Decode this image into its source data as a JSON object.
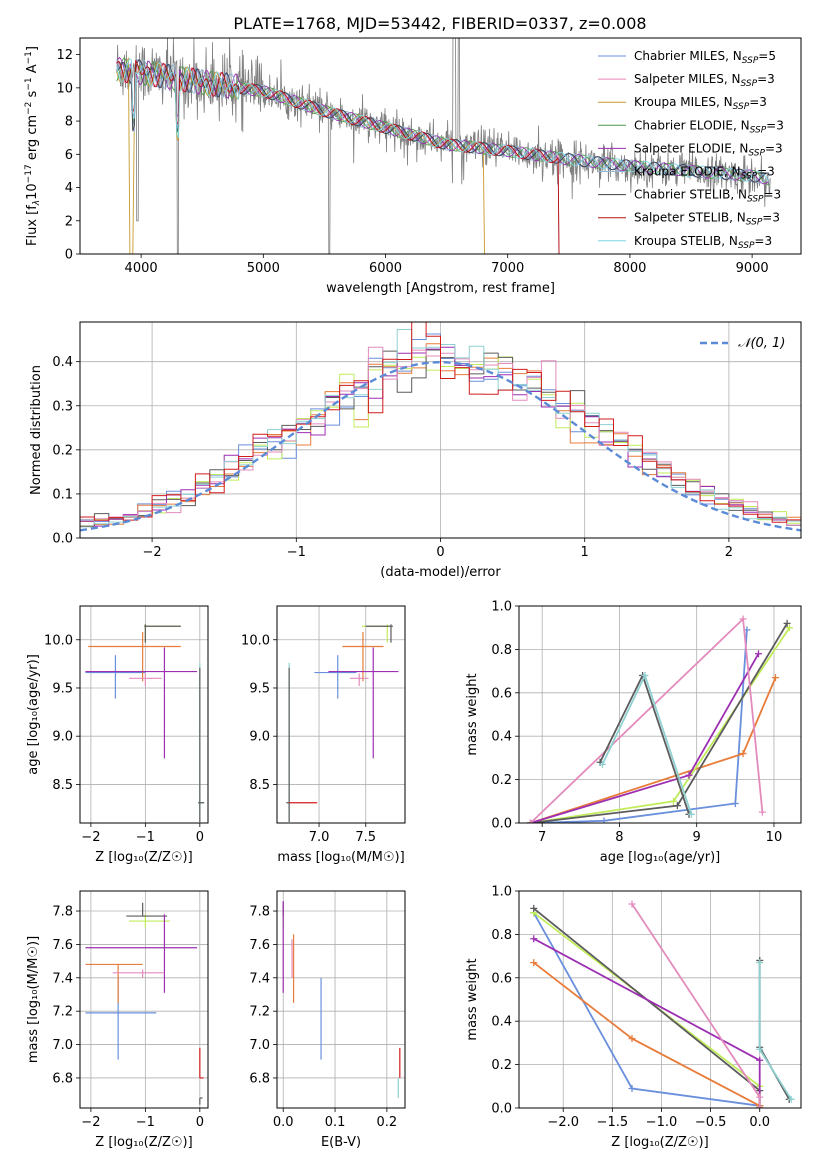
{
  "figure": {
    "title": "PLATE=1768, MJD=53442, FIBERID=0337, z=0.008"
  },
  "colors": [
    "#6a8fdc",
    "#e986b8",
    "#c8992c",
    "#4e9a4e",
    "#9b30b0",
    "#93b9d6",
    "#404040",
    "#b01010",
    "#7dd6e0"
  ],
  "model_colors": [
    "#6a8fdc",
    "#e87c3a",
    "#c0ec5a",
    "#5c5c5c",
    "#9c2fb2",
    "#e38bbd",
    "#8fd1d1",
    "#d21c1c"
  ],
  "chart_data": [
    {
      "id": "spectrum",
      "type": "line",
      "xlabel": "wavelength [Angstrom, rest frame]",
      "ylabel": "Flux [f_λ 10⁻¹⁷ erg cm⁻² s⁻¹ A⁻¹]",
      "ylabel_parts": [
        "Flux [f",
        "λ",
        "10",
        "−17",
        " erg cm",
        "−2",
        " s",
        "−1",
        " A",
        "−1",
        "]"
      ],
      "xlim": [
        3500,
        9400
      ],
      "ylim": [
        0,
        13
      ],
      "xticks": [
        4000,
        5000,
        6000,
        7000,
        8000,
        9000
      ],
      "yticks": [
        0,
        2,
        4,
        6,
        8,
        10,
        12
      ],
      "legend_position": "top-right",
      "legend": [
        {
          "name": "Chabrier MILES, N",
          "sub": "SSP",
          "tail": "=5"
        },
        {
          "name": "Salpeter MILES, N",
          "sub": "SSP",
          "tail": "=3"
        },
        {
          "name": "Kroupa MILES, N",
          "sub": "SSP",
          "tail": "=3"
        },
        {
          "name": "Chabrier ELODIE, N",
          "sub": "SSP",
          "tail": "=3"
        },
        {
          "name": "Salpeter ELODIE, N",
          "sub": "SSP",
          "tail": "=3"
        },
        {
          "name": "Kroupa ELODIE, N",
          "sub": "SSP",
          "tail": "=3"
        },
        {
          "name": "Chabrier STELIB, N",
          "sub": "SSP",
          "tail": "=3"
        },
        {
          "name": "Salpeter STELIB, N",
          "sub": "SSP",
          "tail": "=3"
        },
        {
          "name": "Kroupa STELIB, N",
          "sub": "SSP",
          "tail": "=3"
        }
      ],
      "continuum": [
        [
          3800,
          11.2
        ],
        [
          4000,
          11.0
        ],
        [
          4300,
          10.6
        ],
        [
          4600,
          10.2
        ],
        [
          5000,
          9.8
        ],
        [
          5500,
          8.6
        ],
        [
          6000,
          7.6
        ],
        [
          6500,
          6.6
        ],
        [
          7000,
          6.2
        ],
        [
          7500,
          5.7
        ],
        [
          8000,
          5.3
        ],
        [
          8500,
          5.0
        ],
        [
          9000,
          4.7
        ],
        [
          9150,
          4.5
        ]
      ]
    },
    {
      "id": "residuals",
      "type": "step",
      "xlabel": "(data-model)/error",
      "ylabel": "Normed distribution",
      "xlim": [
        -2.5,
        2.5
      ],
      "ylim": [
        0,
        0.49
      ],
      "xticks": [
        -2,
        -1,
        0,
        1,
        2
      ],
      "yticks": [
        0.0,
        0.1,
        0.2,
        0.3,
        0.4
      ],
      "gaussian_label": "𝒩(0, 1)",
      "legend_position": "top-right",
      "bin_edges_start": -2.5,
      "bin_width": 0.1,
      "hist_base": [
        0.03,
        0.035,
        0.042,
        0.05,
        0.06,
        0.072,
        0.085,
        0.1,
        0.117,
        0.135,
        0.155,
        0.175,
        0.195,
        0.215,
        0.237,
        0.258,
        0.28,
        0.3,
        0.32,
        0.34,
        0.358,
        0.375,
        0.39,
        0.405,
        0.415,
        0.4,
        0.395,
        0.388,
        0.378,
        0.368,
        0.352,
        0.338,
        0.32,
        0.302,
        0.282,
        0.262,
        0.24,
        0.22,
        0.2,
        0.178,
        0.158,
        0.14,
        0.12,
        0.102,
        0.087,
        0.073,
        0.06,
        0.05,
        0.042,
        0.035
      ]
    },
    {
      "id": "age_vs_Z",
      "type": "errorbar",
      "xlabel": "Z [log₁₀(Z/Z☉)]",
      "ylabel": "age  [log₁₀(age/yr)]",
      "xlim": [
        -2.2,
        0.15
      ],
      "ylim": [
        8.1,
        10.35
      ],
      "xticks": [
        -2,
        -1,
        0
      ],
      "yticks": [
        8.5,
        9.0,
        9.5,
        10.0
      ],
      "points": [
        {
          "x": -1.55,
          "xerr": [
            0.55,
            0.55
          ],
          "y": 9.66,
          "yerr": [
            0.27,
            0.18
          ],
          "c": 0
        },
        {
          "x": -1.05,
          "xerr": [
            1.0,
            0.7
          ],
          "y": 9.93,
          "yerr": [
            0.36,
            0.15
          ],
          "c": 1
        },
        {
          "x": -1.0,
          "xerr": [
            0.02,
            0.65
          ],
          "y": 10.14,
          "yerr": [
            0.17,
            0.02
          ],
          "c": 2
        },
        {
          "x": -1.0,
          "xerr": [
            0.02,
            0.65
          ],
          "y": 10.14,
          "yerr": [
            0.17,
            0.02
          ],
          "c": 3
        },
        {
          "x": -0.65,
          "xerr": [
            1.45,
            0.6
          ],
          "y": 9.67,
          "yerr": [
            0.9,
            0.25
          ],
          "c": 4
        },
        {
          "x": -1.0,
          "xerr": [
            0.3,
            0.3
          ],
          "y": 9.6,
          "yerr": [
            0.08,
            0.05
          ],
          "c": 5
        },
        {
          "x": 0.0,
          "xerr": [
            0.03,
            0.08
          ],
          "y": 8.31,
          "yerr": [
            0.2,
            1.45
          ],
          "c": 6
        },
        {
          "x": 0.0,
          "xerr": [
            0.03,
            0.08
          ],
          "y": 8.31,
          "yerr": [
            0.2,
            1.4
          ],
          "c": 3
        }
      ]
    },
    {
      "id": "age_vs_mass",
      "type": "errorbar",
      "xlabel": "mass [log₁₀(M/M☉)]",
      "ylabel": "",
      "xlim": [
        6.55,
        7.92
      ],
      "ylim": [
        8.1,
        10.35
      ],
      "xticks": [
        7.0,
        7.5
      ],
      "yticks": [
        8.5,
        9.0,
        9.5,
        10.0
      ],
      "points": [
        {
          "x": 7.2,
          "xerr": [
            0.25,
            0.2
          ],
          "y": 9.66,
          "yerr": [
            0.27,
            0.18
          ],
          "c": 0
        },
        {
          "x": 7.47,
          "xerr": [
            0.22,
            0.22
          ],
          "y": 9.93,
          "yerr": [
            0.36,
            0.15
          ],
          "c": 1
        },
        {
          "x": 7.73,
          "xerr": [
            0.27,
            0.02
          ],
          "y": 10.14,
          "yerr": [
            0.17,
            0.02
          ],
          "c": 2
        },
        {
          "x": 7.77,
          "xerr": [
            0.27,
            0.02
          ],
          "y": 10.14,
          "yerr": [
            0.17,
            0.02
          ],
          "c": 3
        },
        {
          "x": 7.58,
          "xerr": [
            0.48,
            0.27
          ],
          "y": 9.67,
          "yerr": [
            0.9,
            0.25
          ],
          "c": 4
        },
        {
          "x": 7.43,
          "xerr": [
            0.1,
            0.1
          ],
          "y": 9.6,
          "yerr": [
            0.08,
            0.05
          ],
          "c": 5
        },
        {
          "x": 6.68,
          "xerr": [
            0.03,
            0.0
          ],
          "y": 8.31,
          "yerr": [
            0.2,
            1.45
          ],
          "c": 6
        },
        {
          "x": 6.68,
          "xerr": [
            0.03,
            0.0
          ],
          "y": 8.31,
          "yerr": [
            0.2,
            1.4
          ],
          "c": 3
        },
        {
          "x": 6.8,
          "xerr": [
            0.12,
            0.18
          ],
          "y": 8.31,
          "yerr": [
            0.0,
            0.0
          ],
          "c": 7
        }
      ]
    },
    {
      "id": "weight_vs_age",
      "type": "line",
      "xlabel": "age  [log₁₀(age/yr)]",
      "ylabel": "mass weight",
      "xlim": [
        6.7,
        10.35
      ],
      "ylim": [
        0,
        1.0
      ],
      "xticks": [
        7,
        8,
        9,
        10
      ],
      "yticks": [
        0.0,
        0.2,
        0.4,
        0.6,
        0.8,
        1.0
      ],
      "series": [
        {
          "c": 0,
          "points": [
            [
              6.85,
              0.0
            ],
            [
              7.8,
              0.01
            ],
            [
              9.5,
              0.09
            ],
            [
              9.65,
              0.89
            ]
          ]
        },
        {
          "c": 1,
          "points": [
            [
              6.85,
              0.0
            ],
            [
              9.6,
              0.32
            ],
            [
              10.02,
              0.67
            ]
          ]
        },
        {
          "c": 2,
          "points": [
            [
              6.85,
              0.0
            ],
            [
              8.7,
              0.1
            ],
            [
              10.2,
              0.9
            ]
          ]
        },
        {
          "c": 3,
          "points": [
            [
              6.85,
              0.0
            ],
            [
              8.75,
              0.08
            ],
            [
              10.17,
              0.92
            ]
          ]
        },
        {
          "c": 4,
          "points": [
            [
              6.85,
              0.0
            ],
            [
              8.9,
              0.22
            ],
            [
              9.8,
              0.78
            ]
          ]
        },
        {
          "c": 5,
          "points": [
            [
              6.85,
              0.0
            ],
            [
              9.6,
              0.94
            ],
            [
              9.85,
              0.05
            ]
          ]
        },
        {
          "c": 3,
          "points": [
            [
              7.75,
              0.28
            ],
            [
              8.3,
              0.68
            ],
            [
              8.9,
              0.04
            ]
          ]
        },
        {
          "c": 6,
          "points": [
            [
              7.78,
              0.27
            ],
            [
              8.33,
              0.68
            ],
            [
              8.93,
              0.04
            ]
          ]
        }
      ]
    },
    {
      "id": "mass_vs_Z",
      "type": "errorbar",
      "xlabel": "Z [log₁₀(Z/Z☉)]",
      "ylabel": "mass [log₁₀(M/M☉)]",
      "xlim": [
        -2.2,
        0.15
      ],
      "ylim": [
        6.62,
        7.92
      ],
      "xticks": [
        -2,
        -1,
        0
      ],
      "yticks": [
        6.8,
        7.0,
        7.2,
        7.4,
        7.6,
        7.8
      ],
      "points": [
        {
          "x": -1.5,
          "xerr": [
            0.6,
            0.7
          ],
          "y": 7.19,
          "yerr": [
            0.28,
            0.21
          ],
          "c": 0
        },
        {
          "x": -1.5,
          "xerr": [
            0.6,
            0.45
          ],
          "y": 7.48,
          "yerr": [
            0.23,
            0.0
          ],
          "c": 1
        },
        {
          "x": -1.0,
          "xerr": [
            0.3,
            0.45
          ],
          "y": 7.74,
          "yerr": [
            0.04,
            0.04
          ],
          "c": 2
        },
        {
          "x": -1.05,
          "xerr": [
            0.3,
            0.45
          ],
          "y": 7.77,
          "yerr": [
            0.0,
            0.08
          ],
          "c": 3
        },
        {
          "x": -0.65,
          "xerr": [
            1.45,
            0.6
          ],
          "y": 7.58,
          "yerr": [
            0.27,
            0.2
          ],
          "c": 4
        },
        {
          "x": -1.05,
          "xerr": [
            0.55,
            0.4
          ],
          "y": 7.43,
          "yerr": [
            0.03,
            0.02
          ],
          "c": 5
        },
        {
          "x": 0.0,
          "xerr": [
            0.0,
            0.05
          ],
          "y": 6.68,
          "yerr": [
            0.04,
            0.0
          ],
          "c": 3
        },
        {
          "x": 0.0,
          "xerr": [
            0.0,
            0.07
          ],
          "y": 6.8,
          "yerr": [
            0.0,
            0.18
          ],
          "c": 7
        }
      ]
    },
    {
      "id": "mass_vs_EBV",
      "type": "errorbar",
      "xlabel": "E(B-V)",
      "ylabel": "",
      "xlim": [
        -0.012,
        0.235
      ],
      "ylim": [
        6.62,
        7.92
      ],
      "xticks": [
        0.0,
        0.1,
        0.2
      ],
      "yticks": [
        6.8,
        7.0,
        7.2,
        7.4,
        7.6,
        7.8
      ],
      "points": [
        {
          "x": 0.073,
          "xerr": [
            0.0,
            0.0
          ],
          "y": 7.19,
          "yerr": [
            0.28,
            0.21
          ],
          "c": 0
        },
        {
          "x": 0.02,
          "xerr": [
            0.0,
            0.0
          ],
          "y": 7.48,
          "yerr": [
            0.23,
            0.18
          ],
          "c": 1
        },
        {
          "x": 0.0,
          "xerr": [
            0.0,
            0.0
          ],
          "y": 7.74,
          "yerr": [
            0.04,
            0.06
          ],
          "c": 2
        },
        {
          "x": 0.0,
          "xerr": [
            0.0,
            0.0
          ],
          "y": 7.77,
          "yerr": [
            0.0,
            0.08
          ],
          "c": 3
        },
        {
          "x": 0.0,
          "xerr": [
            0.0,
            0.0
          ],
          "y": 7.58,
          "yerr": [
            0.27,
            0.28
          ],
          "c": 4
        },
        {
          "x": 0.017,
          "xerr": [
            0.0,
            0.0
          ],
          "y": 7.43,
          "yerr": [
            0.03,
            0.2
          ],
          "c": 5
        },
        {
          "x": 0.222,
          "xerr": [
            0.0,
            0.0
          ],
          "y": 6.68,
          "yerr": [
            0.0,
            0.12
          ],
          "c": 6
        },
        {
          "x": 0.225,
          "xerr": [
            0.0,
            0.0
          ],
          "y": 6.8,
          "yerr": [
            0.0,
            0.18
          ],
          "c": 7
        }
      ]
    },
    {
      "id": "weight_vs_Z",
      "type": "line",
      "xlabel": "Z [log₁₀(Z/Z☉)]",
      "ylabel": "mass weight",
      "xlim": [
        -2.45,
        0.42
      ],
      "ylim": [
        0,
        1.0
      ],
      "xticks": [
        -2.0,
        -1.5,
        -1.0,
        -0.5,
        0.0
      ],
      "yticks": [
        0.0,
        0.2,
        0.4,
        0.6,
        0.8,
        1.0
      ],
      "series": [
        {
          "c": 0,
          "points": [
            [
              -2.3,
              0.9
            ],
            [
              -1.3,
              0.09
            ],
            [
              0.0,
              0.01
            ]
          ]
        },
        {
          "c": 1,
          "points": [
            [
              -2.3,
              0.67
            ],
            [
              -1.3,
              0.32
            ],
            [
              0.0,
              0.01
            ]
          ]
        },
        {
          "c": 2,
          "points": [
            [
              -2.3,
              0.9
            ],
            [
              0.0,
              0.1
            ],
            [
              0.0,
              0.0
            ]
          ]
        },
        {
          "c": 3,
          "points": [
            [
              -2.3,
              0.92
            ],
            [
              0.0,
              0.08
            ],
            [
              0.0,
              0.0
            ]
          ]
        },
        {
          "c": 4,
          "points": [
            [
              -2.3,
              0.78
            ],
            [
              0.0,
              0.22
            ],
            [
              0.0,
              0.0
            ]
          ]
        },
        {
          "c": 5,
          "points": [
            [
              -1.3,
              0.94
            ],
            [
              0.0,
              0.05
            ],
            [
              0.0,
              0.0
            ]
          ]
        },
        {
          "c": 3,
          "points": [
            [
              0.0,
              0.68
            ],
            [
              0.0,
              0.28
            ],
            [
              0.3,
              0.04
            ]
          ]
        },
        {
          "c": 6,
          "points": [
            [
              0.0,
              0.67
            ],
            [
              0.0,
              0.27
            ],
            [
              0.32,
              0.04
            ]
          ]
        }
      ]
    }
  ]
}
